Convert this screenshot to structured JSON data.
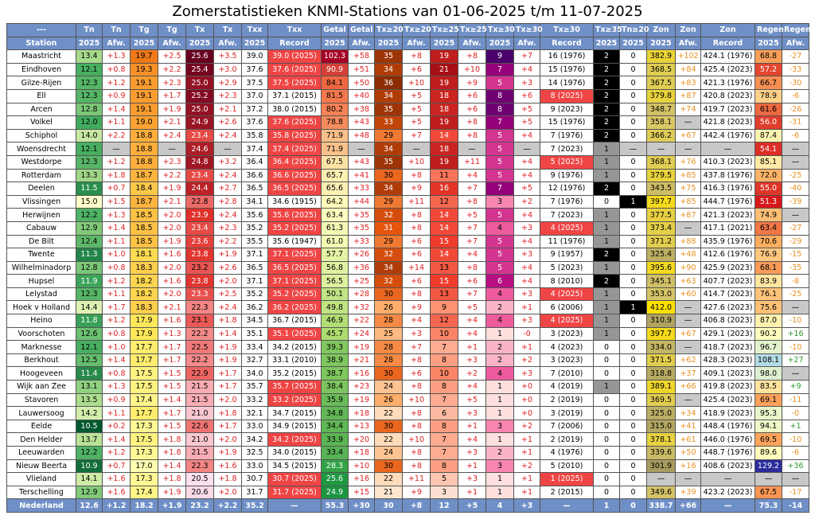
{
  "title": "Zomerstatistieken KNMI-Stations van 01-06-2025 t/m 11-07-2025",
  "table": {
    "header": [
      [
        "---",
        "Tn",
        "Tn",
        "Tg",
        "Tg",
        "Tx",
        "Tx",
        "Txx",
        "Txx",
        "Getal",
        "Getal",
        "Tx≥20",
        "Tx≥20",
        "Tx≥25",
        "Tx≥25",
        "Tx≥30",
        "Tx≥30",
        "Tx≥30",
        "Tx≥35",
        "Tn≥20",
        "Zon",
        "Zon",
        "Zon",
        "Regen",
        "Regen"
      ],
      [
        "Station",
        "2025",
        "Afw.",
        "2025",
        "Afw.",
        "2025",
        "Afw.",
        "2025",
        "Record",
        "2025",
        "Afw.",
        "2025",
        "Afw.",
        "2025",
        "Afw.",
        "2025",
        "Afw.",
        "Record",
        "2025",
        "2025",
        "2025",
        "Afw.",
        "Record",
        "2025",
        "Afw."
      ]
    ],
    "rows": [
      [
        "Maastricht",
        "13.4",
        "+1.3",
        "19.7",
        "+2.5",
        "25.6",
        "+3.5",
        "39.0",
        "39.0 (2025)",
        "102.3",
        "+58",
        "35",
        "+8",
        "19",
        "+8",
        "9",
        "+7",
        "16 (1976)",
        "2",
        "0",
        "382.9",
        "+102",
        "424.1 (1976)",
        "68.8",
        "-27"
      ],
      [
        "Eindhoven",
        "12.1",
        "+0.8",
        "19.3",
        "+2.2",
        "25.4",
        "+3.0",
        "37.6",
        "37.6 (2025)",
        "90.9",
        "+51",
        "34",
        "+6",
        "21",
        "+10",
        "7",
        "+4",
        "15 (1976)",
        "2",
        "0",
        "368.5",
        "+84",
        "425.4 (2023)",
        "57.2",
        "-33"
      ],
      [
        "Gilze-Rijen",
        "12.3",
        "+1.2",
        "19.1",
        "+2.3",
        "25.0",
        "+2.9",
        "37.5",
        "37.5 (2025)",
        "84.1",
        "+50",
        "36",
        "+10",
        "19",
        "+9",
        "5",
        "+3",
        "14 (1976)",
        "2",
        "0",
        "367.5",
        "+83",
        "421.3 (1976)",
        "66.7",
        "-30"
      ],
      [
        "Ell",
        "12.3",
        "+0.9",
        "19.1",
        "+1.7",
        "25.2",
        "+2.3",
        "37.0",
        "37.1 (2015)",
        "81.5",
        "+40",
        "34",
        "+5",
        "18",
        "+6",
        "8",
        "+6",
        "8 (2025)",
        "2",
        "0",
        "379.8",
        "+87",
        "420.8 (2023)",
        "78.9",
        "-6"
      ],
      [
        "Arcen",
        "12.8",
        "+1.4",
        "19.1",
        "+1.9",
        "25.0",
        "+2.1",
        "37.2",
        "38.0 (2015)",
        "80.2",
        "+38",
        "35",
        "+5",
        "18",
        "+6",
        "8",
        "+5",
        "9 (2023)",
        "2",
        "0",
        "348.7",
        "+74",
        "419.7 (2023)",
        "61.6",
        "-26"
      ],
      [
        "Volkel",
        "12.0",
        "+1.1",
        "19.0",
        "+2.1",
        "24.9",
        "+2.6",
        "37.6",
        "37.6 (2025)",
        "78.8",
        "+43",
        "33",
        "+5",
        "19",
        "+8",
        "7",
        "+5",
        "15 (1976)",
        "2",
        "0",
        "358.1",
        "—",
        "421.8 (2023)",
        "56.0",
        "-31"
      ],
      [
        "Schiphol",
        "14.0",
        "+2.2",
        "18.8",
        "+2.4",
        "23.4",
        "+2.4",
        "35.8",
        "35.8 (2025)",
        "71.9",
        "+48",
        "29",
        "+7",
        "14",
        "+8",
        "5",
        "+4",
        "7 (1976)",
        "2",
        "0",
        "366.2",
        "+67",
        "442.4 (1976)",
        "87.4",
        "-6"
      ],
      [
        "Woensdrecht",
        "12.1",
        "—",
        "18.8",
        "—",
        "24.6",
        "—",
        "37.4",
        "37.4 (2025)",
        "71.9",
        "—",
        "34",
        "—",
        "18",
        "—",
        "5",
        "—",
        "7 (2023)",
        "1",
        "—",
        "—",
        "—",
        "—",
        "54.1",
        "—"
      ],
      [
        "Westdorpe",
        "12.3",
        "+1.2",
        "18.8",
        "+2.3",
        "24.8",
        "+3.2",
        "36.4",
        "36.4 (2025)",
        "67.5",
        "+43",
        "35",
        "+10",
        "19",
        "+11",
        "5",
        "+4",
        "5 (2025)",
        "1",
        "0",
        "368.1",
        "+76",
        "410.3 (2023)",
        "85.1",
        "—"
      ],
      [
        "Rotterdam",
        "13.3",
        "+1.8",
        "18.7",
        "+2.2",
        "23.4",
        "+2.4",
        "36.6",
        "36.6 (2025)",
        "65.7",
        "+41",
        "30",
        "+8",
        "11",
        "+4",
        "5",
        "+4",
        "9 (1976)",
        "1",
        "0",
        "379.5",
        "+85",
        "437.8 (1976)",
        "72.0",
        "-25"
      ],
      [
        "Deelen",
        "11.5",
        "+0.7",
        "18.4",
        "+1.9",
        "24.4",
        "+2.7",
        "36.5",
        "36.5 (2025)",
        "65.6",
        "+33",
        "34",
        "+9",
        "16",
        "+7",
        "7",
        "+5",
        "12 (1976)",
        "2",
        "0",
        "343.5",
        "+75",
        "416.3 (1976)",
        "55.0",
        "-40"
      ],
      [
        "Vlissingen",
        "15.0",
        "+1.5",
        "18.7",
        "+2.1",
        "22.8",
        "+2.8",
        "34.1",
        "34.6 (1915)",
        "64.2",
        "+44",
        "29",
        "+11",
        "12",
        "+8",
        "3",
        "+2",
        "7 (1976)",
        "0",
        "1",
        "397.7",
        "+85",
        "444.7 (1976)",
        "51.3",
        "-39"
      ],
      [
        "Herwijnen",
        "12.2",
        "+1.3",
        "18.5",
        "+2.0",
        "23.9",
        "+2.4",
        "35.6",
        "35.6 (2025)",
        "63.4",
        "+35",
        "32",
        "+8",
        "14",
        "+5",
        "5",
        "+4",
        "7 (2023)",
        "1",
        "0",
        "377.5",
        "+87",
        "421.3 (2023)",
        "74.9",
        "—"
      ],
      [
        "Cabauw",
        "12.9",
        "+1.4",
        "18.5",
        "+2.0",
        "23.4",
        "+2.3",
        "35.2",
        "35.2 (2025)",
        "61.3",
        "+35",
        "31",
        "+8",
        "14",
        "+7",
        "4",
        "+3",
        "4 (2025)",
        "1",
        "0",
        "373.4",
        "—",
        "417.1 (2021)",
        "63.4",
        "-27"
      ],
      [
        "De Bilt",
        "12.4",
        "+1.1",
        "18.5",
        "+1.9",
        "23.6",
        "+2.2",
        "35.5",
        "35.6 (1947)",
        "61.0",
        "+33",
        "29",
        "+6",
        "15",
        "+7",
        "5",
        "+4",
        "11 (1976)",
        "1",
        "0",
        "371.2",
        "+88",
        "435.9 (1976)",
        "70.6",
        "-29"
      ],
      [
        "Twente",
        "11.3",
        "+1.0",
        "18.1",
        "+1.6",
        "23.8",
        "+1.9",
        "37.1",
        "37.1 (2025)",
        "57.7",
        "+26",
        "32",
        "+6",
        "14",
        "+4",
        "5",
        "+3",
        "9 (1957)",
        "2",
        "0",
        "325.4",
        "+48",
        "412.6 (1976)",
        "76.9",
        "-15"
      ],
      [
        "Wilhelminadorp",
        "12.8",
        "+0.8",
        "18.3",
        "+2.0",
        "23.2",
        "+2.6",
        "36.5",
        "36.5 (2025)",
        "56.8",
        "+36",
        "34",
        "+14",
        "13",
        "+8",
        "5",
        "+4",
        "5 (2023)",
        "1",
        "0",
        "395.6",
        "+90",
        "425.9 (2023)",
        "68.1",
        "-35"
      ],
      [
        "Hupsel",
        "11.9",
        "+1.2",
        "18.2",
        "+1.6",
        "23.8",
        "+2.0",
        "37.1",
        "37.1 (2025)",
        "56.5",
        "+25",
        "32",
        "+6",
        "15",
        "+6",
        "6",
        "+4",
        "8 (2010)",
        "2",
        "0",
        "345.1",
        "+63",
        "407.7 (2023)",
        "83.9",
        "-8"
      ],
      [
        "Lelystad",
        "12.3",
        "+1.1",
        "18.2",
        "+2.0",
        "23.3",
        "+2.5",
        "35.2",
        "35.2 (2025)",
        "50.1",
        "+28",
        "30",
        "+8",
        "13",
        "+7",
        "4",
        "+3",
        "4 (2025)",
        "1",
        "0",
        "353.0",
        "+60",
        "414.7 (2023)",
        "76.1",
        "-25"
      ],
      [
        "Hoek v Holland",
        "14.4",
        "+1.7",
        "18.3",
        "+2.1",
        "22.3",
        "+2.4",
        "36.2",
        "36.2 (2025)",
        "49.8",
        "+32",
        "26",
        "+9",
        "9",
        "+5",
        "2",
        "+1",
        "6 (2006)",
        "1",
        "1",
        "412.0",
        "—",
        "427.6 (2023)",
        "75.6",
        "—"
      ],
      [
        "Heino",
        "11.8",
        "+1.2",
        "17.9",
        "+1.6",
        "23.1",
        "+1.8",
        "34.5",
        "36.7 (2015)",
        "46.9",
        "+22",
        "28",
        "+4",
        "12",
        "+4",
        "4",
        "+3",
        "4 (2025)",
        "1",
        "0",
        "310.9",
        "—",
        "406.8 (2023)",
        "87.0",
        "-10"
      ],
      [
        "Voorschoten",
        "12.6",
        "+0.8",
        "17.9",
        "+1.3",
        "22.2",
        "+1.4",
        "35.1",
        "35.1 (2025)",
        "45.7",
        "+24",
        "25",
        "+3",
        "10",
        "+4",
        "1",
        "-0",
        "3 (2023)",
        "1",
        "0",
        "397.7",
        "+67",
        "429.1 (2023)",
        "90.2",
        "+16"
      ],
      [
        "Marknesse",
        "12.1",
        "+1.0",
        "17.7",
        "+1.7",
        "22.5",
        "+1.9",
        "33.4",
        "34.2 (2015)",
        "39.3",
        "+19",
        "28",
        "+7",
        "7",
        "+1",
        "2",
        "+1",
        "4 (2023)",
        "0",
        "0",
        "334.0",
        "—",
        "418.7 (2023)",
        "96.7",
        "-10"
      ],
      [
        "Berkhout",
        "12.5",
        "+1.4",
        "17.7",
        "+1.7",
        "22.2",
        "+1.9",
        "32.7",
        "33.1 (2010)",
        "38.9",
        "+21",
        "28",
        "+8",
        "8",
        "+3",
        "2",
        "+2",
        "3 (2023)",
        "0",
        "0",
        "371.5",
        "+62",
        "428.3 (2023)",
        "108.1",
        "+27"
      ],
      [
        "Hoogeveen",
        "11.4",
        "+0.8",
        "17.5",
        "+1.5",
        "22.9",
        "+1.7",
        "34.0",
        "35.2 (2015)",
        "38.7",
        "+16",
        "30",
        "+6",
        "10",
        "+2",
        "4",
        "+3",
        "7 (2010)",
        "0",
        "0",
        "318.8",
        "+37",
        "409.1 (2023)",
        "98.0",
        "—"
      ],
      [
        "Wijk aan Zee",
        "13.1",
        "+1.3",
        "17.5",
        "+1.5",
        "21.5",
        "+1.7",
        "35.7",
        "35.7 (2025)",
        "38.4",
        "+23",
        "24",
        "+8",
        "8",
        "+4",
        "1",
        "+0",
        "4 (2019)",
        "1",
        "0",
        "389.1",
        "+66",
        "419.8 (2023)",
        "83.5",
        "+9"
      ],
      [
        "Stavoren",
        "13.5",
        "+0.9",
        "17.4",
        "+1.4",
        "21.5",
        "+2.0",
        "33.2",
        "33.2 (2025)",
        "35.9",
        "+19",
        "26",
        "+10",
        "7",
        "+5",
        "1",
        "+0",
        "2 (2019)",
        "0",
        "0",
        "369.5",
        "—",
        "425.4 (2023)",
        "69.1",
        "-11"
      ],
      [
        "Lauwersoog",
        "14.2",
        "+1.1",
        "17.7",
        "+1.7",
        "21.0",
        "+1.8",
        "32.1",
        "34.7 (2015)",
        "34.8",
        "+18",
        "22",
        "+8",
        "6",
        "+3",
        "1",
        "+0",
        "3 (2019)",
        "0",
        "0",
        "325.0",
        "+34",
        "418.9 (2023)",
        "95.3",
        "-0"
      ],
      [
        "Eelde",
        "10.5",
        "+0.2",
        "17.3",
        "+1.5",
        "22.6",
        "+1.7",
        "33.0",
        "34.9 (2015)",
        "34.4",
        "+13",
        "30",
        "+8",
        "8",
        "+1",
        "3",
        "+2",
        "7 (2006)",
        "0",
        "0",
        "315.0",
        "+41",
        "448.4 (1976)",
        "94.1",
        "+1"
      ],
      [
        "Den Helder",
        "13.7",
        "+1.4",
        "17.5",
        "+1.8",
        "21.0",
        "+2.0",
        "34.2",
        "34.2 (2025)",
        "33.9",
        "+20",
        "22",
        "+10",
        "7",
        "+4",
        "1",
        "+1",
        "2 (2019)",
        "0",
        "0",
        "378.1",
        "+61",
        "446.0 (1976)",
        "69.5",
        "-10"
      ],
      [
        "Leeuwarden",
        "12.2",
        "+1.2",
        "17.3",
        "+1.8",
        "21.5",
        "+1.9",
        "32.5",
        "34.0 (2015)",
        "33.4",
        "+18",
        "24",
        "+8",
        "7",
        "+3",
        "2",
        "+1",
        "4 (1976)",
        "0",
        "0",
        "339.6",
        "+50",
        "448.7 (1976)",
        "89.6",
        "-6"
      ],
      [
        "Nieuw Beerta",
        "10.9",
        "+0.7",
        "17.0",
        "+1.4",
        "22.3",
        "+1.6",
        "33.0",
        "34.5 (2015)",
        "28.3",
        "+10",
        "30",
        "+8",
        "8",
        "+1",
        "3",
        "+2",
        "5 (2010)",
        "0",
        "0",
        "301.9",
        "+16",
        "408.6 (2023)",
        "129.2",
        "+36"
      ],
      [
        "Vlieland",
        "14.1",
        "+1.6",
        "17.3",
        "+1.8",
        "20.5",
        "+1.8",
        "30.7",
        "30.7 (2025)",
        "25.6",
        "+16",
        "22",
        "+11",
        "5",
        "+3",
        "1",
        "+1",
        "1 (2025)",
        "0",
        "0",
        "—",
        "—",
        "—",
        "—",
        "—"
      ],
      [
        "Terschelling",
        "12.9",
        "+1.6",
        "17.4",
        "+1.9",
        "20.6",
        "+2.0",
        "31.7",
        "31.7 (2025)",
        "24.9",
        "+15",
        "21",
        "+9",
        "3",
        "+1",
        "1",
        "+1",
        "2 (2015)",
        "0",
        "0",
        "349.6",
        "+39",
        "423.2 (2023)",
        "67.5",
        "-17"
      ]
    ],
    "footer": [
      "Nederland",
      "12.6",
      "+1.2",
      "18.2",
      "+1.9",
      "23.2",
      "+2.2",
      "35.2",
      "—",
      "55.3",
      "+30",
      "30",
      "+8",
      "12",
      "+5",
      "4",
      "+3",
      "—",
      "1",
      "0",
      "338.7",
      "+66",
      "—",
      "75.3",
      "-14"
    ]
  }
}
